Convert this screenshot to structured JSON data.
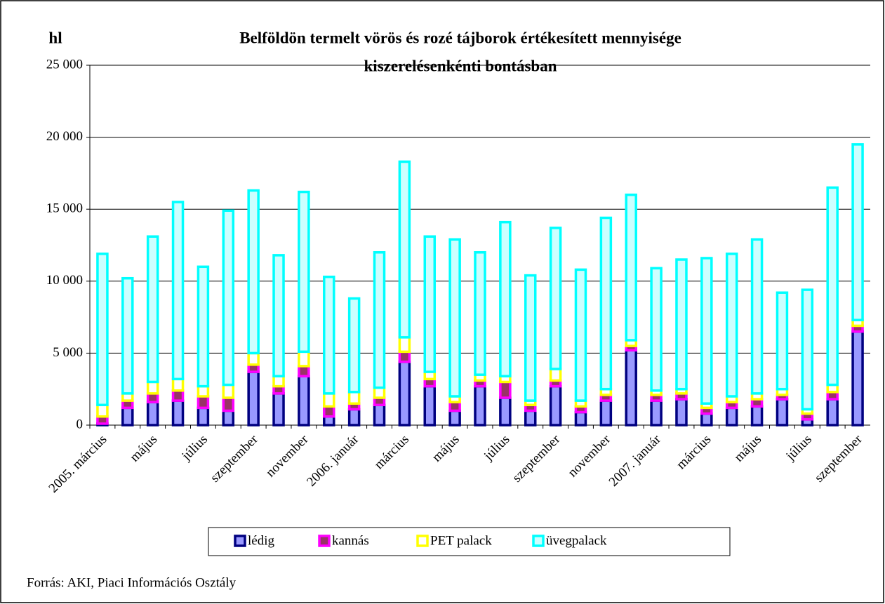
{
  "chart_data": {
    "type": "stacked_bar",
    "title": [
      "Belföldön termelt vörös és rozé tájborok értékesített mennyisége",
      "kiszerelésenkénti bontásban"
    ],
    "y_label": "hl",
    "source": "Forrás: AKI, Piaci Információs Osztály",
    "categories": [
      "2005. március",
      null,
      "május",
      null,
      "július",
      null,
      "szeptember",
      null,
      "november",
      null,
      "2006. január",
      null,
      "március",
      null,
      "május",
      null,
      "július",
      null,
      "szeptember",
      null,
      "november",
      null,
      "2007. január",
      null,
      "március",
      null,
      "május",
      null,
      "július",
      null,
      "szeptember"
    ],
    "series": [
      {
        "name": "lédig",
        "color": "#000080",
        "fill": "#9999ff",
        "values": [
          100,
          1200,
          1600,
          1700,
          1200,
          1000,
          3700,
          2200,
          3400,
          600,
          1100,
          1400,
          4400,
          2700,
          1000,
          2700,
          1900,
          1000,
          2700,
          900,
          1700,
          5200,
          1700,
          1800,
          800,
          1200,
          1300,
          1800,
          400,
          1800,
          6500
        ]
      },
      {
        "name": "kannás",
        "color": "#ff00ff",
        "fill": "#993366",
        "values": [
          500,
          500,
          600,
          700,
          800,
          900,
          500,
          500,
          700,
          700,
          400,
          500,
          700,
          500,
          600,
          400,
          1100,
          400,
          400,
          400,
          400,
          300,
          400,
          400,
          400,
          400,
          500,
          300,
          400,
          500,
          400
        ]
      },
      {
        "name": "PET palack",
        "color": "#ffff00",
        "fill": "#ffffff",
        "values": [
          800,
          500,
          800,
          800,
          700,
          900,
          800,
          700,
          1000,
          900,
          800,
          700,
          1000,
          500,
          400,
          400,
          400,
          300,
          800,
          400,
          400,
          400,
          300,
          300,
          300,
          400,
          400,
          400,
          300,
          500,
          400
        ]
      },
      {
        "name": "üvegpalack",
        "color": "#00ffff",
        "fill": "#ccffff",
        "values": [
          10500,
          8000,
          10100,
          12300,
          8300,
          12100,
          11300,
          8400,
          11100,
          8100,
          6500,
          9400,
          12200,
          9400,
          10900,
          8500,
          10700,
          8700,
          9800,
          9100,
          11900,
          10100,
          8500,
          9000,
          10100,
          9900,
          10700,
          6700,
          8300,
          13700,
          12200
        ]
      }
    ],
    "ylim": [
      0,
      25000
    ],
    "yticks": [
      0,
      {
        "value": 5000,
        "label": "5 000"
      },
      {
        "value": 10000,
        "label": "10 000"
      },
      {
        "value": 15000,
        "label": "15 000"
      },
      {
        "value": 20000,
        "label": "20 000"
      },
      {
        "value": 25000,
        "label": "25 000"
      }
    ],
    "grid": true
  }
}
